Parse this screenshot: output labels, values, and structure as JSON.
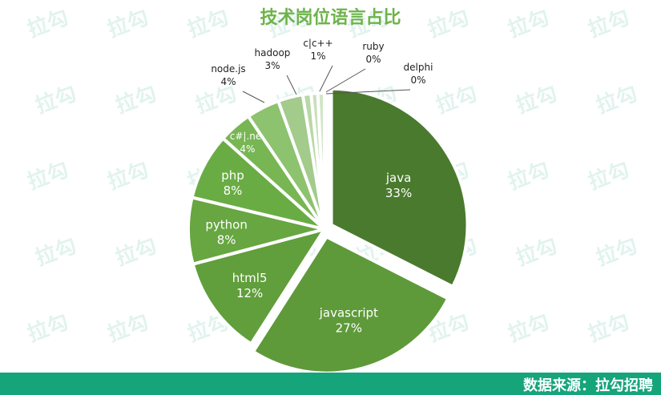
{
  "title": "技术岗位语言占比",
  "footer": "数据来源：拉勾招聘",
  "watermark": "拉勾",
  "chart_data": {
    "type": "pie",
    "title": "技术岗位语言占比",
    "unit": "%",
    "slices": [
      {
        "label": "java",
        "value": 33,
        "color": "#4a7a2e",
        "text": "33%",
        "exploded": true
      },
      {
        "label": "javascript",
        "value": 27,
        "color": "#5e9a3a",
        "text": "27%",
        "exploded": true
      },
      {
        "label": "html5",
        "value": 12,
        "color": "#619e3c",
        "text": "12%"
      },
      {
        "label": "python",
        "value": 8,
        "color": "#67a641",
        "text": "8%"
      },
      {
        "label": "php",
        "value": 8,
        "color": "#6aac44",
        "text": "8%"
      },
      {
        "label": "c#|.net",
        "value": 4,
        "color": "#77b653",
        "text": "4%"
      },
      {
        "label": "node.js",
        "value": 4,
        "color": "#8dc26f",
        "text": "4%"
      },
      {
        "label": "hadoop",
        "value": 3,
        "color": "#a2cb8c",
        "text": "3%"
      },
      {
        "label": "c|c++",
        "value": 1,
        "color": "#b8d8a6",
        "text": "1%"
      },
      {
        "label": "ruby",
        "value": 0,
        "color": "#c8e0bb",
        "text": "0%"
      },
      {
        "label": "delphi",
        "value": 0,
        "color": "#d2e6c7",
        "text": "0%"
      }
    ]
  }
}
